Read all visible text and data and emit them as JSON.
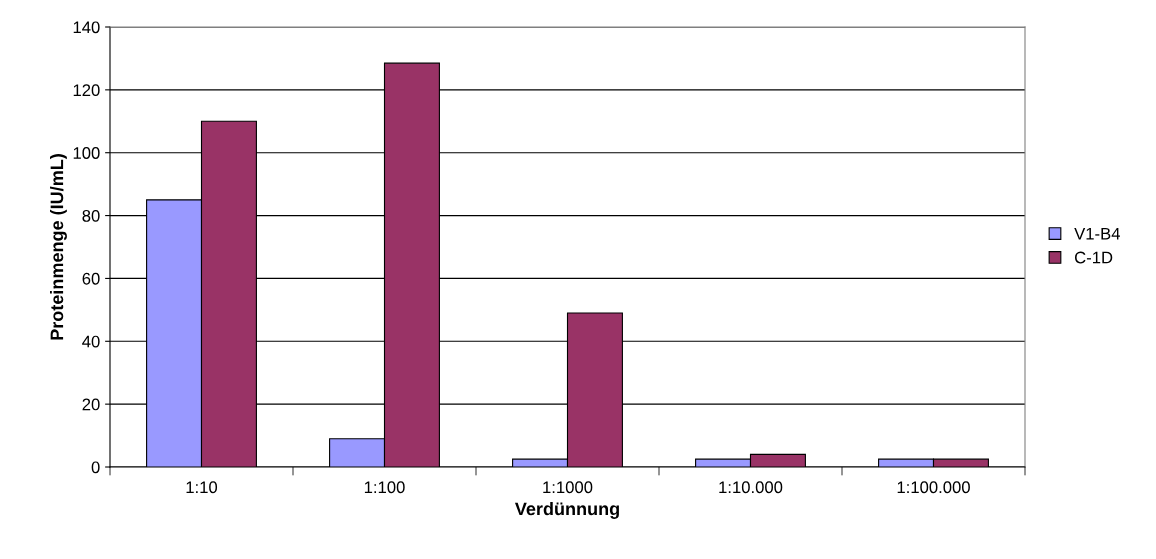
{
  "chart_data": {
    "type": "bar",
    "xlabel": "Verdünnung",
    "ylabel": "Proteinmenge (IU/mL)",
    "categories": [
      "1:10",
      "1:100",
      "1:1000",
      "1:10.000",
      "1:100.000"
    ],
    "series": [
      {
        "name": "V1-B4",
        "color": "#9999ff",
        "values": [
          85,
          9,
          2.5,
          2.5,
          2.5
        ]
      },
      {
        "name": "C-1D",
        "color": "#993366",
        "values": [
          110,
          128.5,
          49,
          4,
          2.5
        ]
      }
    ],
    "ylim": [
      0,
      140
    ],
    "yticks": [
      0,
      20,
      40,
      60,
      80,
      100,
      120,
      140
    ],
    "grid": "y",
    "legend": "right"
  }
}
